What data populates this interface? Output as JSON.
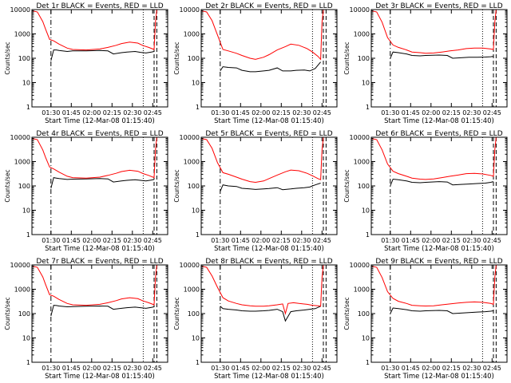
{
  "page": {
    "background": "#ffffff",
    "axis_color": "#000000",
    "events_color": "#000000",
    "lld_color": "#ff0000"
  },
  "chart_data": [
    {
      "type": "line",
      "title": "Det 1r BLACK = Events, RED = LLD",
      "xlabel": "Start Time (12-Mar-08 01:15:40)",
      "ylabel": "Counts/sec",
      "yscale": "log",
      "ylim": [
        1,
        10000
      ],
      "xlim": [
        0,
        100
      ],
      "x_tick_labels": [
        "01:30",
        "01:45",
        "02:00",
        "02:15",
        "02:30",
        "02:45"
      ],
      "y_tick_labels": [
        "1",
        "10",
        "100",
        "1000",
        "10000"
      ],
      "series": [
        {
          "name": "BLACK = Events",
          "color": "#000000",
          "x": [
            14,
            16,
            18,
            20,
            26,
            30,
            40,
            50,
            56,
            60,
            66,
            70,
            76,
            80,
            84,
            88,
            90
          ],
          "y": [
            80,
            220,
            220,
            210,
            190,
            200,
            200,
            210,
            200,
            150,
            170,
            180,
            190,
            175,
            165,
            180,
            190
          ]
        },
        {
          "name": "RED = LLD",
          "color": "#ff0000",
          "x": [
            0,
            4,
            8,
            10,
            13,
            16,
            20,
            26,
            30,
            40,
            50,
            56,
            62,
            66,
            72,
            78,
            82,
            86,
            90,
            91,
            92
          ],
          "y": [
            9000,
            8000,
            3200,
            1600,
            600,
            520,
            380,
            260,
            230,
            220,
            240,
            280,
            340,
            400,
            460,
            420,
            330,
            280,
            230,
            3000,
            10000
          ]
        }
      ]
    },
    {
      "type": "line",
      "title": "Det 2r BLACK = Events, RED = LLD",
      "xlabel": "Start Time (12-Mar-08 01:15:40)",
      "ylabel": "Counts/sec",
      "yscale": "log",
      "ylim": [
        1,
        10000
      ],
      "xlim": [
        0,
        100
      ],
      "x_tick_labels": [
        "01:30",
        "01:45",
        "02:00",
        "02:15",
        "02:30",
        "02:45"
      ],
      "y_tick_labels": [
        "1",
        "10",
        "100",
        "1000",
        "10000"
      ],
      "series": [
        {
          "name": "BLACK = Events",
          "color": "#000000",
          "x": [
            14,
            16,
            20,
            26,
            30,
            36,
            40,
            46,
            50,
            56,
            60,
            66,
            70,
            76,
            80,
            84,
            88
          ],
          "y": [
            30,
            45,
            42,
            40,
            32,
            28,
            28,
            30,
            32,
            40,
            30,
            30,
            32,
            33,
            30,
            38,
            70
          ]
        },
        {
          "name": "RED = LLD",
          "color": "#ff0000",
          "x": [
            0,
            4,
            8,
            12,
            16,
            20,
            26,
            30,
            36,
            40,
            46,
            50,
            56,
            62,
            66,
            72,
            78,
            82,
            86,
            88,
            89,
            90
          ],
          "y": [
            9000,
            8000,
            3500,
            900,
            230,
            200,
            160,
            130,
            100,
            90,
            110,
            140,
            220,
            300,
            380,
            340,
            250,
            180,
            120,
            90,
            3000,
            10000
          ]
        }
      ]
    },
    {
      "type": "line",
      "title": "Det 3r BLACK = Events, RED = LLD",
      "xlabel": "Start Time (12-Mar-08 01:15:40)",
      "ylabel": "Counts/sec",
      "yscale": "log",
      "ylim": [
        1,
        10000
      ],
      "xlim": [
        0,
        100
      ],
      "x_tick_labels": [
        "01:30",
        "01:45",
        "02:00",
        "02:15",
        "02:30",
        "02:45"
      ],
      "y_tick_labels": [
        "1",
        "10",
        "100",
        "1000",
        "10000"
      ],
      "series": [
        {
          "name": "BLACK = Events",
          "color": "#000000",
          "x": [
            14,
            16,
            20,
            26,
            30,
            36,
            40,
            50,
            56,
            60,
            66,
            72,
            78,
            84,
            88,
            90
          ],
          "y": [
            100,
            180,
            170,
            150,
            130,
            125,
            130,
            135,
            130,
            100,
            105,
            110,
            110,
            112,
            115,
            120
          ]
        },
        {
          "name": "RED = LLD",
          "color": "#ff0000",
          "x": [
            0,
            4,
            8,
            12,
            16,
            20,
            26,
            30,
            36,
            40,
            46,
            52,
            58,
            64,
            70,
            76,
            82,
            88,
            90,
            91,
            92
          ],
          "y": [
            9000,
            8000,
            3000,
            700,
            350,
            280,
            220,
            180,
            170,
            160,
            165,
            180,
            200,
            220,
            250,
            260,
            260,
            240,
            230,
            3000,
            10000
          ]
        }
      ]
    },
    {
      "type": "line",
      "title": "Det 4r BLACK = Events, RED = LLD",
      "xlabel": "Start Time (12-Mar-08 01:15:40)",
      "ylabel": "Counts/sec",
      "yscale": "log",
      "ylim": [
        1,
        10000
      ],
      "xlim": [
        0,
        100
      ],
      "x_tick_labels": [
        "01:30",
        "01:45",
        "02:00",
        "02:15",
        "02:30",
        "02:45"
      ],
      "y_tick_labels": [
        "1",
        "10",
        "100",
        "1000",
        "10000"
      ],
      "series": [
        {
          "name": "BLACK = Events",
          "color": "#000000",
          "x": [
            14,
            16,
            18,
            20,
            26,
            30,
            40,
            50,
            56,
            60,
            66,
            70,
            76,
            80,
            84,
            88,
            90
          ],
          "y": [
            80,
            220,
            210,
            200,
            185,
            190,
            195,
            200,
            195,
            145,
            160,
            170,
            180,
            170,
            160,
            175,
            185
          ]
        },
        {
          "name": "RED = LLD",
          "color": "#ff0000",
          "x": [
            0,
            4,
            8,
            10,
            13,
            16,
            20,
            26,
            30,
            40,
            50,
            56,
            62,
            66,
            72,
            78,
            82,
            86,
            90,
            91,
            92
          ],
          "y": [
            9000,
            8000,
            3000,
            1500,
            600,
            500,
            370,
            250,
            220,
            210,
            230,
            270,
            330,
            390,
            440,
            400,
            320,
            270,
            220,
            3000,
            10000
          ]
        }
      ]
    },
    {
      "type": "line",
      "title": "Det 5r BLACK = Events, RED = LLD",
      "xlabel": "Start Time (12-Mar-08 01:15:40)",
      "ylabel": "Counts/sec",
      "yscale": "log",
      "ylim": [
        1,
        10000
      ],
      "xlim": [
        0,
        100
      ],
      "x_tick_labels": [
        "01:30",
        "01:45",
        "02:00",
        "02:15",
        "02:30",
        "02:45"
      ],
      "y_tick_labels": [
        "1",
        "10",
        "100",
        "1000",
        "10000"
      ],
      "series": [
        {
          "name": "BLACK = Events",
          "color": "#000000",
          "x": [
            14,
            16,
            20,
            26,
            30,
            36,
            40,
            46,
            50,
            56,
            60,
            66,
            70,
            76,
            80,
            84,
            88
          ],
          "y": [
            60,
            110,
            100,
            95,
            80,
            75,
            72,
            75,
            78,
            85,
            70,
            75,
            80,
            85,
            90,
            110,
            130
          ]
        },
        {
          "name": "RED = LLD",
          "color": "#ff0000",
          "x": [
            0,
            4,
            8,
            12,
            16,
            20,
            26,
            30,
            36,
            40,
            46,
            50,
            56,
            62,
            66,
            72,
            78,
            82,
            86,
            88,
            89,
            90
          ],
          "y": [
            9000,
            8000,
            3500,
            900,
            350,
            300,
            230,
            190,
            150,
            140,
            160,
            200,
            280,
            380,
            450,
            420,
            330,
            260,
            200,
            180,
            3000,
            10000
          ]
        }
      ]
    },
    {
      "type": "line",
      "title": "Det 6r BLACK = Events, RED = LLD",
      "xlabel": "Start Time (12-Mar-08 01:15:40)",
      "ylabel": "Counts/sec",
      "yscale": "log",
      "ylim": [
        1,
        10000
      ],
      "xlim": [
        0,
        100
      ],
      "x_tick_labels": [
        "01:30",
        "01:45",
        "02:00",
        "02:15",
        "02:30",
        "02:45"
      ],
      "y_tick_labels": [
        "1",
        "10",
        "100",
        "1000",
        "10000"
      ],
      "series": [
        {
          "name": "BLACK = Events",
          "color": "#000000",
          "x": [
            14,
            16,
            20,
            26,
            30,
            36,
            40,
            50,
            56,
            60,
            66,
            72,
            78,
            84,
            88,
            90
          ],
          "y": [
            100,
            190,
            180,
            160,
            140,
            135,
            140,
            150,
            145,
            110,
            115,
            120,
            125,
            130,
            140,
            150
          ]
        },
        {
          "name": "RED = LLD",
          "color": "#ff0000",
          "x": [
            0,
            4,
            8,
            12,
            16,
            20,
            26,
            30,
            36,
            40,
            46,
            52,
            58,
            64,
            70,
            76,
            82,
            88,
            90,
            91,
            92
          ],
          "y": [
            9000,
            8000,
            3000,
            800,
            400,
            320,
            250,
            210,
            190,
            185,
            195,
            220,
            250,
            280,
            320,
            330,
            310,
            270,
            250,
            3000,
            10000
          ]
        }
      ]
    },
    {
      "type": "line",
      "title": "Det 7r BLACK = Events, RED = LLD",
      "xlabel": "Start Time (12-Mar-08 01:15:40)",
      "ylabel": "Counts/sec",
      "yscale": "log",
      "ylim": [
        1,
        10000
      ],
      "xlim": [
        0,
        100
      ],
      "x_tick_labels": [
        "01:30",
        "01:45",
        "02:00",
        "02:15",
        "02:30",
        "02:45"
      ],
      "y_tick_labels": [
        "1",
        "10",
        "100",
        "1000",
        "10000"
      ],
      "series": [
        {
          "name": "BLACK = Events",
          "color": "#000000",
          "x": [
            14,
            16,
            18,
            20,
            26,
            30,
            40,
            50,
            56,
            60,
            66,
            70,
            76,
            80,
            84,
            88,
            90
          ],
          "y": [
            80,
            220,
            215,
            205,
            190,
            195,
            200,
            205,
            200,
            150,
            165,
            175,
            185,
            175,
            165,
            180,
            190
          ]
        },
        {
          "name": "RED = LLD",
          "color": "#ff0000",
          "x": [
            0,
            4,
            8,
            10,
            13,
            16,
            20,
            26,
            30,
            40,
            50,
            56,
            62,
            66,
            72,
            78,
            82,
            86,
            90,
            91,
            92
          ],
          "y": [
            9000,
            8000,
            3200,
            1600,
            600,
            520,
            380,
            260,
            230,
            220,
            240,
            280,
            340,
            400,
            450,
            410,
            330,
            280,
            230,
            3000,
            10000
          ]
        }
      ]
    },
    {
      "type": "line",
      "title": "Det 8r BLACK = Events, RED = LLD",
      "xlabel": "Start Time (12-Mar-08 01:15:40)",
      "ylabel": "Counts/sec",
      "yscale": "log",
      "ylim": [
        1,
        10000
      ],
      "xlim": [
        0,
        100
      ],
      "x_tick_labels": [
        "01:30",
        "01:45",
        "02:00",
        "02:15",
        "02:30",
        "02:45"
      ],
      "y_tick_labels": [
        "1",
        "10",
        "100",
        "1000",
        "10000"
      ],
      "series": [
        {
          "name": "BLACK = Events",
          "color": "#000000",
          "x": [
            14,
            16,
            20,
            26,
            30,
            36,
            40,
            46,
            50,
            56,
            60,
            62,
            66,
            70,
            76,
            80,
            84,
            88
          ],
          "y": [
            200,
            160,
            150,
            140,
            130,
            125,
            125,
            130,
            135,
            150,
            120,
            50,
            120,
            130,
            140,
            150,
            160,
            200
          ]
        },
        {
          "name": "RED = LLD",
          "color": "#ff0000",
          "x": [
            0,
            4,
            8,
            12,
            16,
            20,
            26,
            30,
            36,
            40,
            46,
            50,
            56,
            60,
            62,
            64,
            68,
            72,
            78,
            82,
            86,
            88,
            89,
            90
          ],
          "y": [
            9000,
            8000,
            3500,
            1200,
            450,
            330,
            260,
            230,
            210,
            200,
            200,
            210,
            230,
            250,
            100,
            260,
            280,
            260,
            240,
            220,
            210,
            200,
            3000,
            10000
          ]
        }
      ]
    },
    {
      "type": "line",
      "title": "Det 9r BLACK = Events, RED = LLD",
      "xlabel": "Start Time (12-Mar-08 01:15:40)",
      "ylabel": "Counts/sec",
      "yscale": "log",
      "ylim": [
        1,
        10000
      ],
      "xlim": [
        0,
        100
      ],
      "x_tick_labels": [
        "01:30",
        "01:45",
        "02:00",
        "02:15",
        "02:30",
        "02:45"
      ],
      "y_tick_labels": [
        "1",
        "10",
        "100",
        "1000",
        "10000"
      ],
      "series": [
        {
          "name": "BLACK = Events",
          "color": "#000000",
          "x": [
            14,
            16,
            20,
            26,
            30,
            36,
            40,
            50,
            56,
            60,
            66,
            72,
            78,
            84,
            88,
            90
          ],
          "y": [
            100,
            170,
            160,
            145,
            130,
            125,
            130,
            135,
            130,
            100,
            105,
            110,
            115,
            120,
            125,
            130
          ]
        },
        {
          "name": "RED = LLD",
          "color": "#ff0000",
          "x": [
            0,
            4,
            8,
            12,
            16,
            20,
            26,
            30,
            36,
            40,
            46,
            52,
            58,
            64,
            70,
            76,
            82,
            88,
            90,
            91,
            92
          ],
          "y": [
            9000,
            8000,
            3000,
            800,
            420,
            320,
            260,
            220,
            210,
            205,
            210,
            230,
            250,
            270,
            290,
            300,
            290,
            260,
            240,
            3000,
            10000
          ]
        }
      ]
    }
  ]
}
